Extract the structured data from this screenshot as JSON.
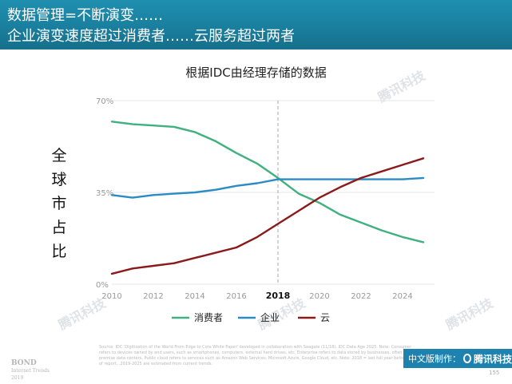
{
  "header": {
    "line1": "数据管理=不断演变……",
    "line2": "企业演变速度超过消费者……云服务超过两者"
  },
  "chart_data": {
    "type": "line",
    "title": "根据IDC由经理存储的数据",
    "ylabel": "全球市占比",
    "xlabel": "",
    "x": [
      2010,
      2011,
      2012,
      2013,
      2014,
      2015,
      2016,
      2017,
      2018,
      2019,
      2020,
      2021,
      2022,
      2023,
      2024,
      2025
    ],
    "xticks": [
      "2010",
      "2012",
      "2014",
      "2016",
      "2018",
      "2020",
      "2022",
      "2024"
    ],
    "highlight_x": "2018",
    "yticks": [
      "0%",
      "35%",
      "70%"
    ],
    "ylim": [
      0,
      70
    ],
    "xlim": [
      2010,
      2025
    ],
    "series": [
      {
        "name": "消费者",
        "color": "#3fb07e",
        "values": [
          62,
          61,
          60.5,
          60,
          58,
          54.5,
          50,
          46,
          40.5,
          34.5,
          31,
          26.5,
          23.5,
          20.5,
          18,
          16
        ]
      },
      {
        "name": "企业",
        "color": "#2b8cc4",
        "values": [
          34,
          33,
          34,
          34.5,
          35,
          36,
          37.5,
          38.5,
          40,
          40,
          40,
          40,
          40,
          40,
          40,
          40.5
        ]
      },
      {
        "name": "云",
        "color": "#8b1a1a",
        "values": [
          4,
          6,
          7,
          8,
          10,
          12,
          14,
          18,
          23,
          28,
          33,
          37,
          40.5,
          43,
          45.5,
          48
        ]
      }
    ],
    "reference_line_x": 2018,
    "legend": "bottom-center"
  },
  "watermark_text": "腾讯科技",
  "source_text": "Source: IDC 'Digitization of the World From Edge to Core White Paper' developed in collaboration with Seagate (11/18). IDC Data Age 2025. Note: Consumer refers to devices owned by end users, such as smartphones, computers, external hard drives, etc. Enterprise refers to data stored by businesses, often in on-premise data centers. Public cloud refers to services such as Amazon Web Services, Microsoft Azure, Google Cloud, etc. Note: 2018 = last full year before release of report...2019-2025 are estimated from current trends.",
  "bond": {
    "line1": "BOND",
    "line2": "Internet Trends",
    "line3": "2019"
  },
  "badge": {
    "text": "中文版制作：",
    "brand": "腾讯科技"
  },
  "page_number": "155"
}
